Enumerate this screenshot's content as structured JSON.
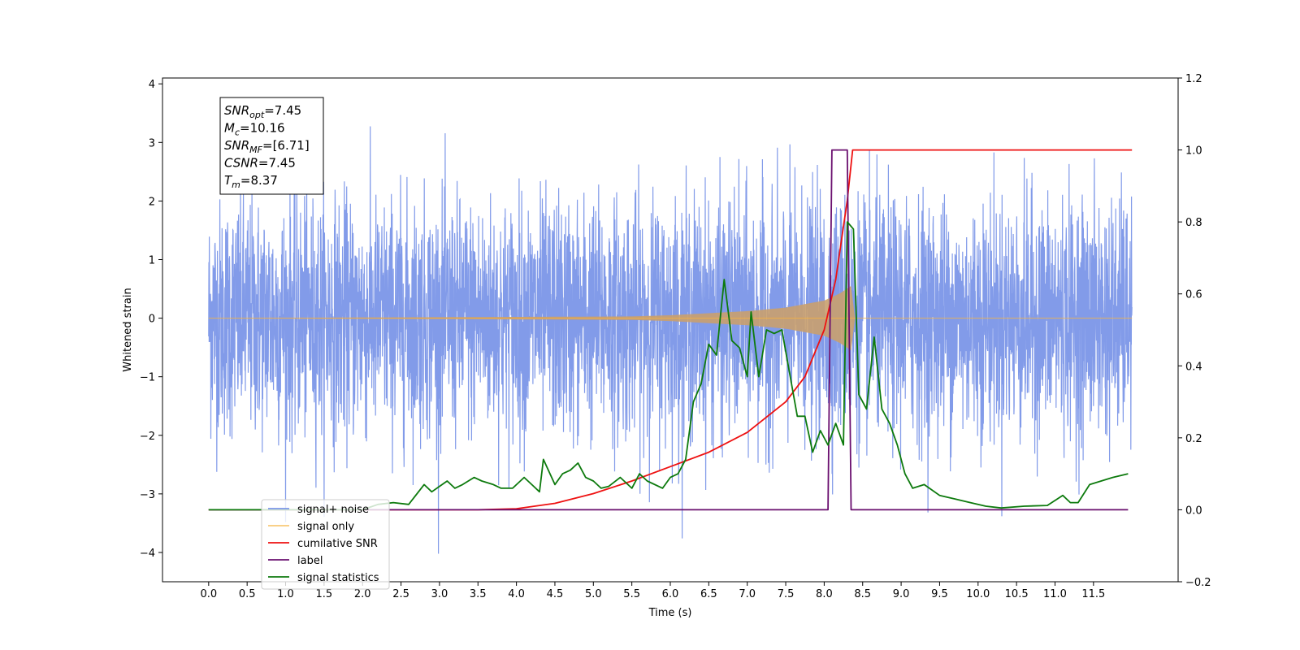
{
  "chart_data": {
    "type": "line",
    "title": "",
    "xlabel": "Time (s)",
    "ylabel": "Whitened strain",
    "xlim": [
      -0.6,
      12.6
    ],
    "ylim": [
      -4.5,
      4.1
    ],
    "ylim_right": [
      -0.2,
      1.2
    ],
    "x_ticks": [
      0.0,
      0.5,
      1.0,
      1.5,
      2.0,
      2.5,
      3.0,
      3.5,
      4.0,
      4.5,
      5.0,
      5.5,
      6.0,
      6.5,
      7.0,
      7.5,
      8.0,
      8.5,
      9.0,
      9.5,
      10.0,
      10.5,
      11.0,
      11.5
    ],
    "x_tick_labels": [
      "0.0",
      "0.5",
      "1.0",
      "1.5",
      "2.0",
      "2.5",
      "3.0",
      "3.5",
      "4.0",
      "4.5",
      "5.0",
      "5.5",
      "6.0",
      "6.5",
      "7.0",
      "7.5",
      "8.0",
      "8.5",
      "9.0",
      "9.5",
      "10.0",
      "10.5",
      "11.0",
      "11.5"
    ],
    "y_ticks": [
      -4,
      -3,
      -2,
      -1,
      0,
      1,
      2,
      3,
      4
    ],
    "y_tick_labels": [
      "−4",
      "−3",
      "−2",
      "−1",
      "0",
      "1",
      "2",
      "3",
      "4"
    ],
    "y_right_ticks": [
      -0.2,
      0.0,
      0.2,
      0.4,
      0.6,
      0.8,
      1.0,
      1.2
    ],
    "y_right_tick_labels": [
      "−0.2",
      "0.0",
      "0.2",
      "0.4",
      "0.6",
      "0.8",
      "1.0",
      "1.2"
    ],
    "legend_position": "lower-left",
    "grid": false,
    "annotation": [
      {
        "base": "SNR",
        "sub": "opt",
        "value": "=7.45"
      },
      {
        "base": "M",
        "sub": "c",
        "value": "=10.16"
      },
      {
        "base": "SNR",
        "sub": "MF",
        "value": "=[6.71]"
      },
      {
        "base": "CSNR",
        "sub": "",
        "value": "=7.45"
      },
      {
        "base": "T",
        "sub": "m",
        "value": "=8.37"
      }
    ],
    "series": [
      {
        "name": "signal+ noise",
        "axis": "left",
        "color": "#7b96e8",
        "description_values": "whitened noise, x from 0.0 to 12.0 s, y roughly within -4.1 to 3.7",
        "x_range": [
          0.0,
          12.0
        ],
        "y_extrema": [
          -4.1,
          3.7
        ]
      },
      {
        "name": "signal only",
        "axis": "left",
        "color": "#f5b342",
        "fill_color": "#c9a06e",
        "x_range": [
          0.0,
          12.0
        ],
        "envelope_points": [
          [
            0.0,
            0.0
          ],
          [
            5.5,
            0.03
          ],
          [
            6.0,
            0.05
          ],
          [
            7.0,
            0.12
          ],
          [
            7.5,
            0.18
          ],
          [
            8.0,
            0.3
          ],
          [
            8.2,
            0.42
          ],
          [
            8.35,
            0.55
          ],
          [
            8.37,
            0.0
          ]
        ]
      },
      {
        "name": "cumilative SNR",
        "axis": "right",
        "color": "#ee1111",
        "points": [
          [
            0.0,
            0.0
          ],
          [
            3.5,
            0.0
          ],
          [
            4.0,
            0.003
          ],
          [
            4.5,
            0.018
          ],
          [
            5.0,
            0.045
          ],
          [
            5.5,
            0.08
          ],
          [
            6.0,
            0.12
          ],
          [
            6.5,
            0.16
          ],
          [
            7.0,
            0.215
          ],
          [
            7.5,
            0.3
          ],
          [
            7.75,
            0.37
          ],
          [
            8.0,
            0.5
          ],
          [
            8.15,
            0.64
          ],
          [
            8.3,
            0.86
          ],
          [
            8.37,
            1.0
          ],
          [
            12.0,
            1.0
          ]
        ]
      },
      {
        "name": "label",
        "axis": "right",
        "color": "#6a0f6f",
        "points": [
          [
            0.0,
            0.0
          ],
          [
            8.05,
            0.0
          ],
          [
            8.1,
            1.0
          ],
          [
            8.3,
            1.0
          ],
          [
            8.35,
            0.0
          ],
          [
            11.95,
            0.0
          ]
        ]
      },
      {
        "name": "signal statistics",
        "axis": "right",
        "color": "#0d7a0d",
        "points": [
          [
            0.0,
            0.0
          ],
          [
            2.0,
            0.0
          ],
          [
            2.2,
            0.015
          ],
          [
            2.4,
            0.02
          ],
          [
            2.6,
            0.015
          ],
          [
            2.8,
            0.07
          ],
          [
            2.9,
            0.05
          ],
          [
            3.0,
            0.065
          ],
          [
            3.1,
            0.08
          ],
          [
            3.2,
            0.06
          ],
          [
            3.3,
            0.07
          ],
          [
            3.45,
            0.09
          ],
          [
            3.55,
            0.08
          ],
          [
            3.7,
            0.07
          ],
          [
            3.8,
            0.06
          ],
          [
            3.95,
            0.06
          ],
          [
            4.1,
            0.09
          ],
          [
            4.2,
            0.07
          ],
          [
            4.3,
            0.05
          ],
          [
            4.35,
            0.14
          ],
          [
            4.5,
            0.07
          ],
          [
            4.6,
            0.1
          ],
          [
            4.7,
            0.11
          ],
          [
            4.8,
            0.13
          ],
          [
            4.9,
            0.09
          ],
          [
            5.0,
            0.08
          ],
          [
            5.1,
            0.06
          ],
          [
            5.2,
            0.065
          ],
          [
            5.35,
            0.09
          ],
          [
            5.5,
            0.06
          ],
          [
            5.6,
            0.1
          ],
          [
            5.7,
            0.08
          ],
          [
            5.9,
            0.06
          ],
          [
            6.0,
            0.09
          ],
          [
            6.1,
            0.1
          ],
          [
            6.2,
            0.14
          ],
          [
            6.3,
            0.3
          ],
          [
            6.4,
            0.35
          ],
          [
            6.5,
            0.46
          ],
          [
            6.6,
            0.43
          ],
          [
            6.7,
            0.64
          ],
          [
            6.8,
            0.47
          ],
          [
            6.9,
            0.45
          ],
          [
            7.0,
            0.37
          ],
          [
            7.05,
            0.55
          ],
          [
            7.15,
            0.37
          ],
          [
            7.25,
            0.5
          ],
          [
            7.35,
            0.49
          ],
          [
            7.45,
            0.5
          ],
          [
            7.55,
            0.38
          ],
          [
            7.65,
            0.26
          ],
          [
            7.75,
            0.26
          ],
          [
            7.85,
            0.16
          ],
          [
            7.95,
            0.22
          ],
          [
            8.05,
            0.18
          ],
          [
            8.15,
            0.24
          ],
          [
            8.25,
            0.18
          ],
          [
            8.3,
            0.8
          ],
          [
            8.38,
            0.78
          ],
          [
            8.45,
            0.32
          ],
          [
            8.55,
            0.28
          ],
          [
            8.65,
            0.48
          ],
          [
            8.75,
            0.28
          ],
          [
            8.85,
            0.24
          ],
          [
            8.95,
            0.18
          ],
          [
            9.05,
            0.1
          ],
          [
            9.15,
            0.06
          ],
          [
            9.3,
            0.07
          ],
          [
            9.5,
            0.04
          ],
          [
            9.7,
            0.03
          ],
          [
            9.9,
            0.02
          ],
          [
            10.1,
            0.01
          ],
          [
            10.3,
            0.005
          ],
          [
            10.6,
            0.01
          ],
          [
            10.9,
            0.012
          ],
          [
            11.1,
            0.04
          ],
          [
            11.2,
            0.02
          ],
          [
            11.3,
            0.02
          ],
          [
            11.45,
            0.07
          ],
          [
            11.6,
            0.08
          ],
          [
            11.75,
            0.09
          ],
          [
            11.95,
            0.1
          ]
        ]
      }
    ]
  }
}
